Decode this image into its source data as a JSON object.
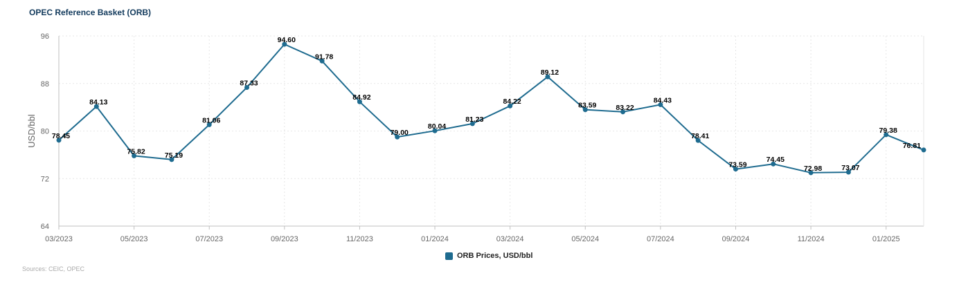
{
  "title": "OPEC Reference Basket (ORB)",
  "source": "Sources: CEIC, OPEC",
  "colors": {
    "series": "#1e6b8f",
    "grid": "#e6e6e6",
    "axis": "#bfbfbf"
  },
  "chart_data": {
    "type": "line",
    "title": "OPEC Reference Basket (ORB)",
    "xlabel": "",
    "ylabel": "USD/bbl",
    "ylim": [
      64,
      96
    ],
    "yticks": [
      "64",
      "72",
      "80",
      "88",
      "96"
    ],
    "xticks": [
      "03/2023",
      "05/2023",
      "07/2023",
      "09/2023",
      "11/2023",
      "01/2024",
      "03/2024",
      "05/2024",
      "07/2024",
      "09/2024",
      "11/2024",
      "01/2025"
    ],
    "grid": true,
    "legend_position": "bottom-center",
    "categories": [
      "03/2023",
      "04/2023",
      "05/2023",
      "06/2023",
      "07/2023",
      "08/2023",
      "09/2023",
      "10/2023",
      "11/2023",
      "12/2023",
      "01/2024",
      "02/2024",
      "03/2024",
      "04/2024",
      "05/2024",
      "06/2024",
      "07/2024",
      "08/2024",
      "09/2024",
      "10/2024",
      "11/2024",
      "12/2024",
      "01/2025",
      "02/2025"
    ],
    "series": [
      {
        "name": "ORB Prices, USD/bbl",
        "values": [
          78.45,
          84.13,
          75.82,
          75.19,
          81.06,
          87.33,
          94.6,
          91.78,
          84.92,
          79.0,
          80.04,
          81.23,
          84.22,
          89.12,
          83.59,
          83.22,
          84.43,
          78.41,
          73.59,
          74.45,
          72.98,
          73.07,
          79.38,
          76.81
        ],
        "labels": [
          "78.45",
          "84.13",
          "75.82",
          "75.19",
          "81.06",
          "87.33",
          "94.60",
          "91.78",
          "84.92",
          "79.00",
          "80.04",
          "81.23",
          "84.22",
          "89.12",
          "83.59",
          "83.22",
          "84.43",
          "78.41",
          "73.59",
          "74.45",
          "72.98",
          "73.07",
          "79.38",
          "76.81"
        ]
      }
    ]
  }
}
